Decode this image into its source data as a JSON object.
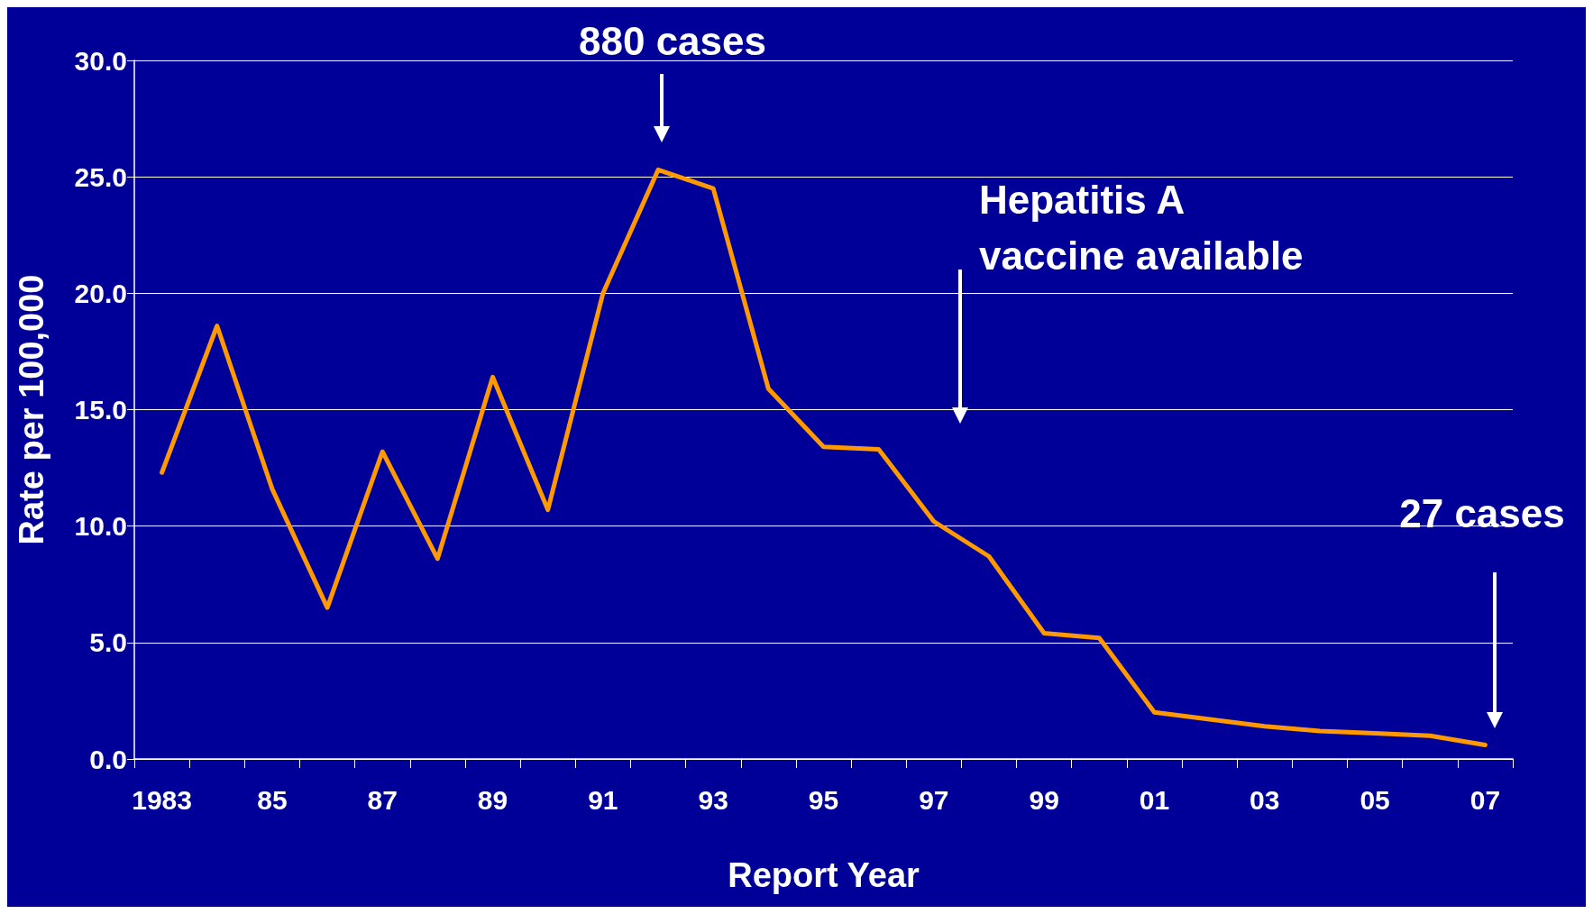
{
  "chart_data": {
    "type": "line",
    "xlabel": "Report Year",
    "ylabel": "Rate per 100,000",
    "categories": [
      "1983",
      null,
      "85",
      null,
      "87",
      null,
      "89",
      null,
      "91",
      null,
      "93",
      null,
      "95",
      null,
      "97",
      null,
      "99",
      null,
      "01",
      null,
      "03",
      null,
      "05",
      null,
      "07"
    ],
    "series": [
      {
        "color": "#ff9900",
        "values": [
          12.3,
          18.6,
          11.6,
          6.5,
          13.2,
          8.6,
          16.4,
          10.7,
          20.0,
          25.3,
          24.5,
          15.9,
          13.4,
          13.3,
          10.2,
          8.7,
          5.4,
          5.2,
          2.0,
          1.7,
          1.4,
          1.2,
          1.1,
          1.0,
          0.6
        ]
      }
    ],
    "ylim": [
      0,
      30
    ],
    "yticks": [
      {
        "value": 0,
        "label": "0.0"
      },
      {
        "value": 5,
        "label": "5.0"
      },
      {
        "value": 10,
        "label": "10.0"
      },
      {
        "value": 15,
        "label": "15.0"
      },
      {
        "value": 20,
        "label": "20.0"
      },
      {
        "value": 25,
        "label": "25.0"
      },
      {
        "value": 30,
        "label": "30.0"
      }
    ],
    "grid": "y",
    "marker": "none",
    "line_style": "solid",
    "annotations": [
      "880 cases",
      "Hepatitis A vaccine available",
      "27 cases"
    ]
  }
}
